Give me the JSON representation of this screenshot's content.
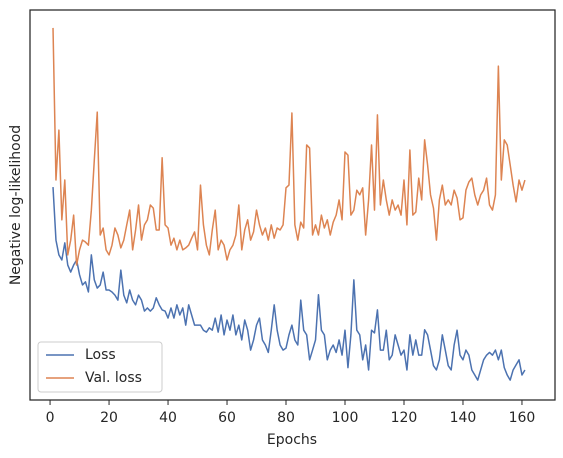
{
  "chart_data": {
    "type": "line",
    "xlabel": "Epochs",
    "ylabel": "Negative log-likelihood",
    "x": [
      1,
      2,
      3,
      4,
      5,
      6,
      7,
      8,
      9,
      10,
      11,
      12,
      13,
      14,
      15,
      16,
      17,
      18,
      19,
      20,
      21,
      22,
      23,
      24,
      25,
      26,
      27,
      28,
      29,
      30,
      31,
      32,
      33,
      34,
      35,
      36,
      37,
      38,
      39,
      40,
      41,
      42,
      43,
      44,
      45,
      46,
      47,
      48,
      49,
      50,
      51,
      52,
      53,
      54,
      55,
      56,
      57,
      58,
      59,
      60,
      61,
      62,
      63,
      64,
      65,
      66,
      67,
      68,
      69,
      70,
      71,
      72,
      73,
      74,
      75,
      76,
      77,
      78,
      79,
      80,
      81,
      82,
      83,
      84,
      85,
      86,
      87,
      88,
      89,
      90,
      91,
      92,
      93,
      94,
      95,
      96,
      97,
      98,
      99,
      100,
      101,
      102,
      103,
      104,
      105,
      106,
      107,
      108,
      109,
      110,
      111,
      112,
      113,
      114,
      115,
      116,
      117,
      118,
      119,
      120,
      121,
      122,
      123,
      124,
      125,
      126,
      127,
      128,
      129,
      130,
      131,
      132,
      133,
      134,
      135,
      136,
      137,
      138,
      139,
      140,
      141,
      142,
      143,
      144,
      145,
      146,
      147,
      148,
      149,
      150,
      151,
      152,
      153,
      154,
      155,
      156,
      157,
      158,
      159,
      160,
      161
    ],
    "series": [
      {
        "name": "Loss",
        "color": "#4c72b0",
        "values": [
          54.6,
          41.0,
          37.2,
          35.9,
          40.3,
          34.6,
          32.8,
          34.6,
          35.9,
          32.1,
          29.5,
          30.3,
          27.7,
          37.2,
          30.8,
          28.7,
          29.5,
          32.8,
          28.2,
          28.2,
          27.7,
          26.9,
          25.6,
          33.3,
          26.9,
          24.9,
          28.2,
          25.6,
          24.4,
          26.9,
          25.6,
          22.8,
          23.6,
          22.8,
          23.6,
          26.2,
          24.4,
          23.1,
          22.8,
          21.0,
          23.6,
          21.0,
          24.4,
          21.8,
          23.6,
          19.2,
          24.4,
          21.8,
          19.2,
          19.2,
          19.2,
          17.9,
          17.4,
          18.5,
          17.9,
          21.0,
          17.4,
          21.8,
          16.7,
          20.5,
          17.9,
          21.8,
          16.7,
          19.2,
          15.4,
          20.5,
          17.9,
          12.8,
          15.4,
          19.2,
          21.0,
          15.4,
          14.1,
          12.2,
          17.9,
          24.4,
          17.9,
          14.1,
          12.8,
          13.3,
          16.7,
          19.2,
          15.4,
          14.1,
          25.6,
          17.9,
          16.7,
          10.3,
          12.8,
          15.4,
          27.0,
          17.9,
          16.7,
          10.3,
          12.8,
          14.1,
          12.2,
          15.4,
          11.5,
          17.9,
          8.3,
          16.7,
          30.8,
          17.9,
          16.7,
          10.3,
          14.1,
          7.7,
          17.9,
          17.2,
          23.1,
          12.8,
          12.8,
          17.9,
          10.3,
          11.5,
          16.7,
          14.1,
          11.5,
          12.8,
          7.7,
          16.7,
          11.5,
          15.4,
          11.5,
          11.5,
          18.0,
          16.7,
          12.8,
          8.8,
          7.7,
          10.3,
          16.7,
          12.8,
          8.8,
          7.7,
          14.1,
          17.9,
          11.5,
          10.3,
          12.8,
          11.5,
          7.7,
          6.4,
          5.1,
          7.7,
          10.3,
          11.5,
          12.2,
          11.5,
          12.8,
          10.3,
          12.8,
          8.3,
          6.4,
          5.1,
          7.7,
          9.0,
          10.3,
          6.4,
          7.7
        ]
      },
      {
        "name": "Val. loss",
        "color": "#dd8452",
        "values": [
          95.4,
          56.4,
          69.2,
          46.2,
          56.4,
          37.2,
          41.0,
          47.4,
          34.6,
          38.5,
          41.0,
          40.5,
          39.7,
          48.7,
          61.5,
          73.8,
          42.3,
          44.1,
          38.5,
          37.2,
          39.7,
          44.1,
          42.3,
          39.0,
          41.0,
          44.9,
          48.7,
          38.5,
          43.6,
          50.0,
          41.0,
          44.9,
          46.2,
          50.0,
          49.2,
          43.6,
          43.6,
          62.1,
          44.9,
          44.1,
          39.7,
          41.5,
          38.5,
          41.0,
          38.5,
          39.0,
          39.7,
          41.5,
          43.1,
          38.5,
          55.1,
          44.9,
          39.7,
          37.2,
          43.6,
          48.7,
          38.5,
          41.0,
          39.7,
          35.9,
          38.5,
          39.7,
          42.3,
          50.0,
          38.5,
          43.6,
          46.2,
          41.0,
          43.1,
          48.7,
          44.9,
          42.3,
          44.1,
          41.0,
          44.9,
          41.5,
          44.1,
          43.6,
          44.9,
          54.4,
          55.1,
          73.6,
          44.9,
          41.0,
          45.6,
          44.1,
          65.4,
          64.6,
          42.3,
          44.9,
          42.3,
          47.4,
          44.1,
          46.2,
          42.3,
          45.6,
          47.4,
          51.3,
          46.2,
          63.6,
          62.8,
          47.4,
          48.7,
          53.8,
          52.6,
          54.4,
          42.3,
          51.3,
          65.4,
          48.7,
          73.1,
          50.0,
          56.4,
          51.3,
          47.4,
          51.3,
          48.7,
          50.0,
          47.4,
          56.4,
          44.9,
          64.1,
          47.4,
          48.2,
          56.9,
          51.3,
          66.7,
          60.3,
          52.6,
          49.2,
          41.0,
          51.3,
          55.1,
          50.0,
          51.3,
          50.0,
          53.8,
          51.8,
          46.2,
          46.7,
          53.8,
          55.9,
          56.9,
          52.6,
          50.0,
          52.6,
          53.8,
          56.9,
          50.0,
          48.7,
          52.6,
          85.6,
          56.4,
          66.7,
          65.4,
          60.3,
          55.1,
          50.8,
          56.4,
          53.8,
          56.4
        ]
      }
    ],
    "xlim": [
      -6.8,
      171.2
    ],
    "xticks": [
      0,
      20,
      40,
      60,
      80,
      100,
      120,
      140,
      160
    ],
    "ylim": [
      0,
      100
    ],
    "legend": "lower left"
  }
}
